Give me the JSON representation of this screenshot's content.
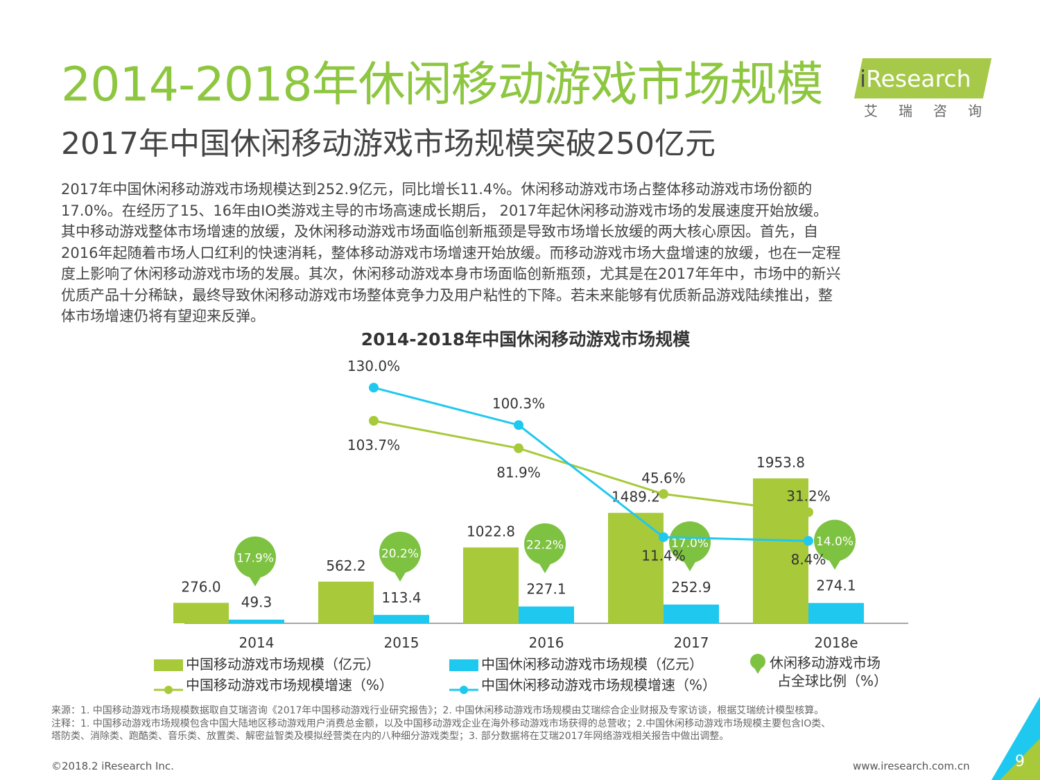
{
  "page": {
    "title": "2014-2018年休闲移动游戏市场规模",
    "subtitle": "2017年中国休闲移动游戏市场规模突破250亿元",
    "logo_text_i": "i",
    "logo_text_main": "Research",
    "logo_cn": "艾瑞咨询",
    "body_lines": [
      "2017年中国休闲移动游戏市场规模达到252.9亿元，同比增长11.4%。休闲移动游戏市场占整体移动游戏市场份额的",
      "17.0%。在经历了15、16年由IO类游戏主导的市场高速成长期后， 2017年起休闲移动游戏市场的发展速度开始放缓。",
      "其中移动游戏整体市场增速的放缓，及休闲移动游戏市场面临创新瓶颈是导致市场增长放缓的两大核心原因。首先，自",
      "2016年起随着市场人口红利的快速消耗，整体移动游戏市场增速开始放缓。而移动游戏市场大盘增速的放缓，也在一定程",
      "度上影响了休闲移动游戏市场的发展。其次，休闲移动游戏本身市场面临创新瓶颈，尤其是在2017年年中，市场中的新兴",
      "优质产品十分稀缺，最终导致休闲移动游戏市场整体竞争力及用户粘性的下降。若未来能够有优质新品游戏陆续推出，整",
      "体市场增速仍将有望迎来反弹。"
    ],
    "notes": [
      "来源：1. 中国移动游戏市场规模数据取自艾瑞咨询《2017年中国移动游戏行业研究报告》；2. 中国休闲移动游戏市场规模由艾瑞综合企业财报及专家访谈，根据艾瑞统计模型核算。",
      "注释：1. 中国移动游戏市场规模包含中国大陆地区移动游戏用户消费总金额，以及中国移动游戏企业在海外移动游戏市场获得的总营收；2.中国休闲移动游戏市场规模主要包含IO类、",
      "塔防类、消除类、跑酷类、音乐类、放置类、解密益智类及模拟经营类在内的八种细分游戏类型；3. 部分数据将在艾瑞2017年网络游戏相关报告中做出调整。"
    ],
    "footer_left": "©2018.2 iResearch Inc.",
    "footer_right": "www.iresearch.com.cn",
    "page_number": "9"
  },
  "colors": {
    "green": "#a7c93a",
    "blue": "#1fc8ef",
    "bubble": "#7ec242",
    "title_green": "#8dc63f"
  },
  "chart_data": {
    "type": "bar",
    "title": "2014-2018年中国休闲移动游戏市场规模",
    "categories": [
      "2014",
      "2015",
      "2016",
      "2017",
      "2018e"
    ],
    "series": [
      {
        "name": "中国移动游戏市场规模（亿元）",
        "type": "bar",
        "values": [
          276.0,
          562.2,
          1022.8,
          1489.2,
          1953.8
        ],
        "labels": [
          "276.0",
          "562.2",
          "1022.8",
          "1489.2",
          "1953.8"
        ]
      },
      {
        "name": "中国休闲移动游戏市场规模（亿元）",
        "type": "bar",
        "values": [
          49.3,
          113.4,
          227.1,
          252.9,
          274.1
        ],
        "labels": [
          "49.3",
          "113.4",
          "227.1",
          "252.9",
          "274.1"
        ]
      },
      {
        "name": "中国移动游戏市场规模增速（%）",
        "type": "line",
        "values": [
          null,
          103.7,
          81.9,
          45.6,
          31.2
        ],
        "labels": [
          "",
          "103.7%",
          "81.9%",
          "45.6%",
          "31.2%"
        ]
      },
      {
        "name": "中国休闲移动游戏市场规模增速（%）",
        "type": "line",
        "values": [
          null,
          130.0,
          100.3,
          11.4,
          8.4
        ],
        "labels": [
          "",
          "130.0%",
          "100.3%",
          "11.4%",
          "8.4%"
        ]
      },
      {
        "name": "休闲移动游戏市场占全球比例（%）",
        "type": "bubble",
        "values": [
          17.9,
          20.2,
          22.2,
          17.0,
          14.0
        ],
        "labels": [
          "17.9%",
          "20.2%",
          "22.2%",
          "17.0%",
          "14.0%"
        ]
      }
    ],
    "legend": [
      {
        "text": "中国移动游戏市场规模（亿元）",
        "kind": "bar-green"
      },
      {
        "text": "中国休闲移动游戏市场规模（亿元）",
        "kind": "bar-blue"
      },
      {
        "text": "休闲移动游戏市场",
        "kind": "bubble"
      },
      {
        "text": "占全球比例（%）",
        "kind": "none"
      },
      {
        "text": "中国移动游戏市场规模增速（%）",
        "kind": "line-green"
      },
      {
        "text": "中国休闲移动游戏市场规模增速（%）",
        "kind": "line-blue"
      }
    ],
    "legend_position": "bottom",
    "grid": false
  }
}
